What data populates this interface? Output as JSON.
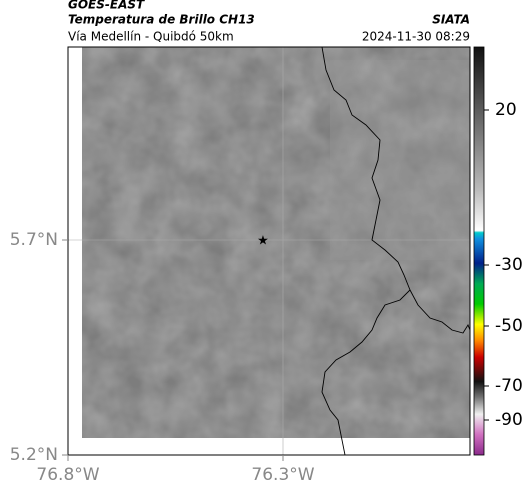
{
  "header": {
    "satellite": "GOES-EAST",
    "product": "Temperatura de Brillo CH13",
    "source": "SIATA",
    "route": "Vía Medellín - Quibdó 50km",
    "timestamp": "2024-11-30 08:29"
  },
  "map": {
    "lat_labels": [
      "5.7°N",
      "5.2°N"
    ],
    "lon_labels": [
      "76.8°W",
      "76.3°W"
    ]
  },
  "colorbar": {
    "ticks": [
      "20",
      "-30",
      "-50",
      "-70",
      "-90"
    ]
  }
}
